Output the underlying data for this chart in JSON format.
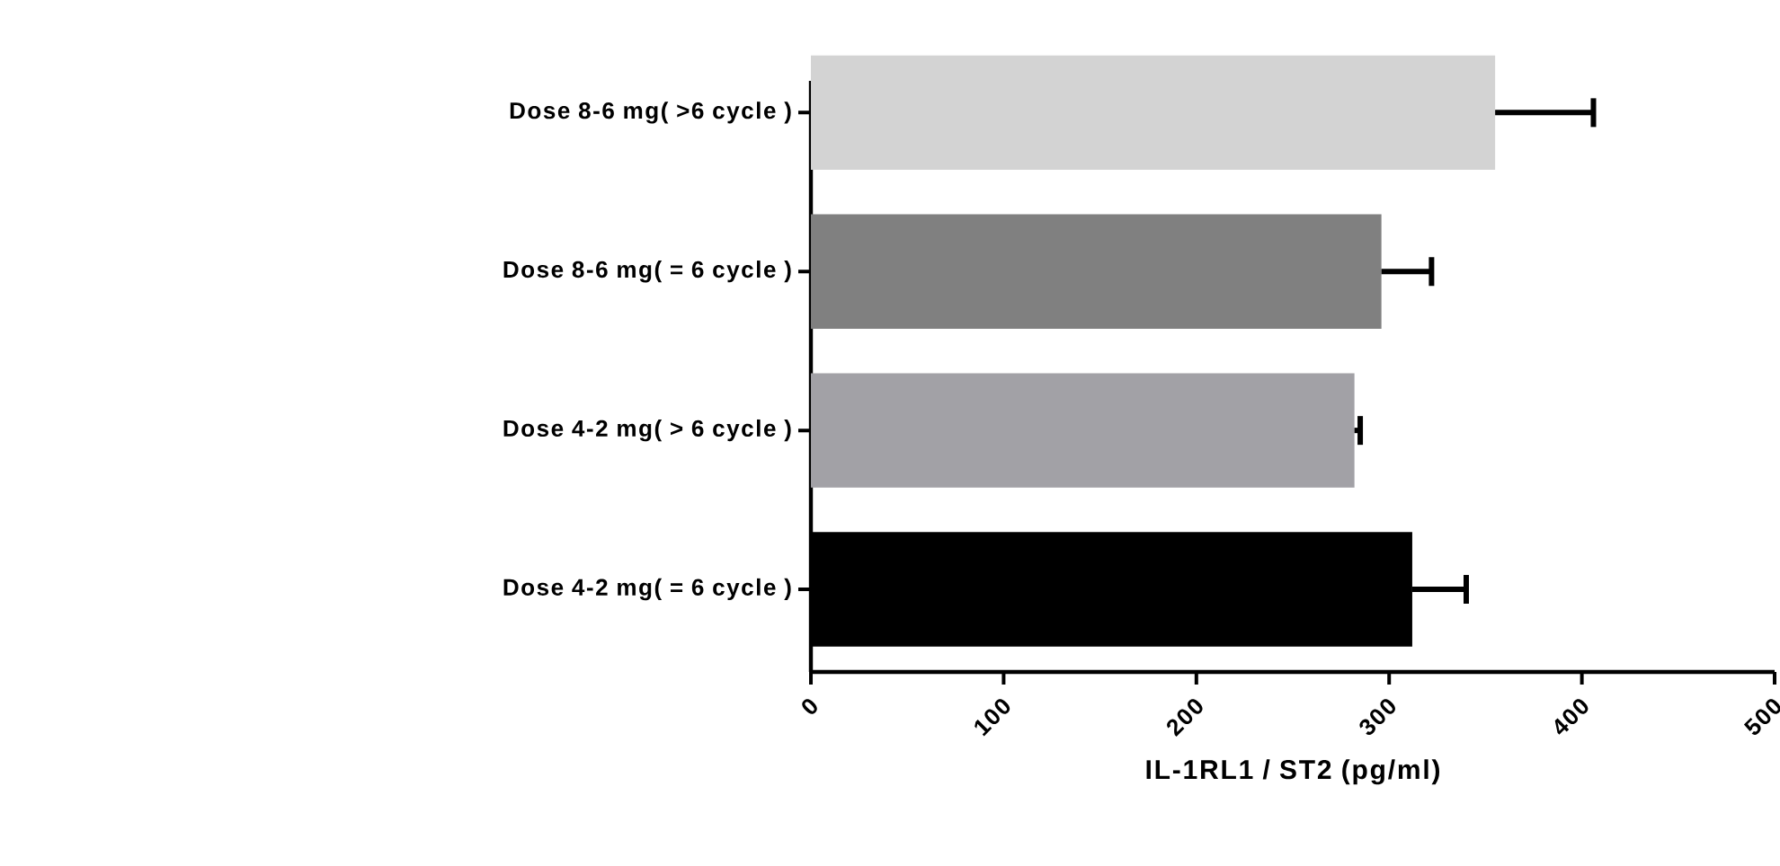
{
  "chart_data": {
    "type": "bar",
    "orientation": "horizontal",
    "xlabel": "IL-1RL1 / ST2 (pg/ml)",
    "categories": [
      "Dose 8-6 mg( >6 cycle )",
      "Dose 8-6 mg( = 6 cycle )",
      "Dose 4-2 mg( > 6 cycle )",
      "Dose 4-2 mg( = 6 cycle )"
    ],
    "values": [
      355,
      296,
      282,
      312
    ],
    "errors": [
      [
        355,
        406
      ],
      [
        296,
        322
      ],
      [
        282,
        285
      ],
      [
        312,
        340
      ]
    ],
    "colors": [
      "#d3d3d3",
      "#808080",
      "#a2a1a6",
      "#000000"
    ],
    "xlim": [
      0,
      500
    ],
    "xticks": [
      0,
      100,
      200,
      300,
      400,
      500
    ],
    "grid": false
  }
}
